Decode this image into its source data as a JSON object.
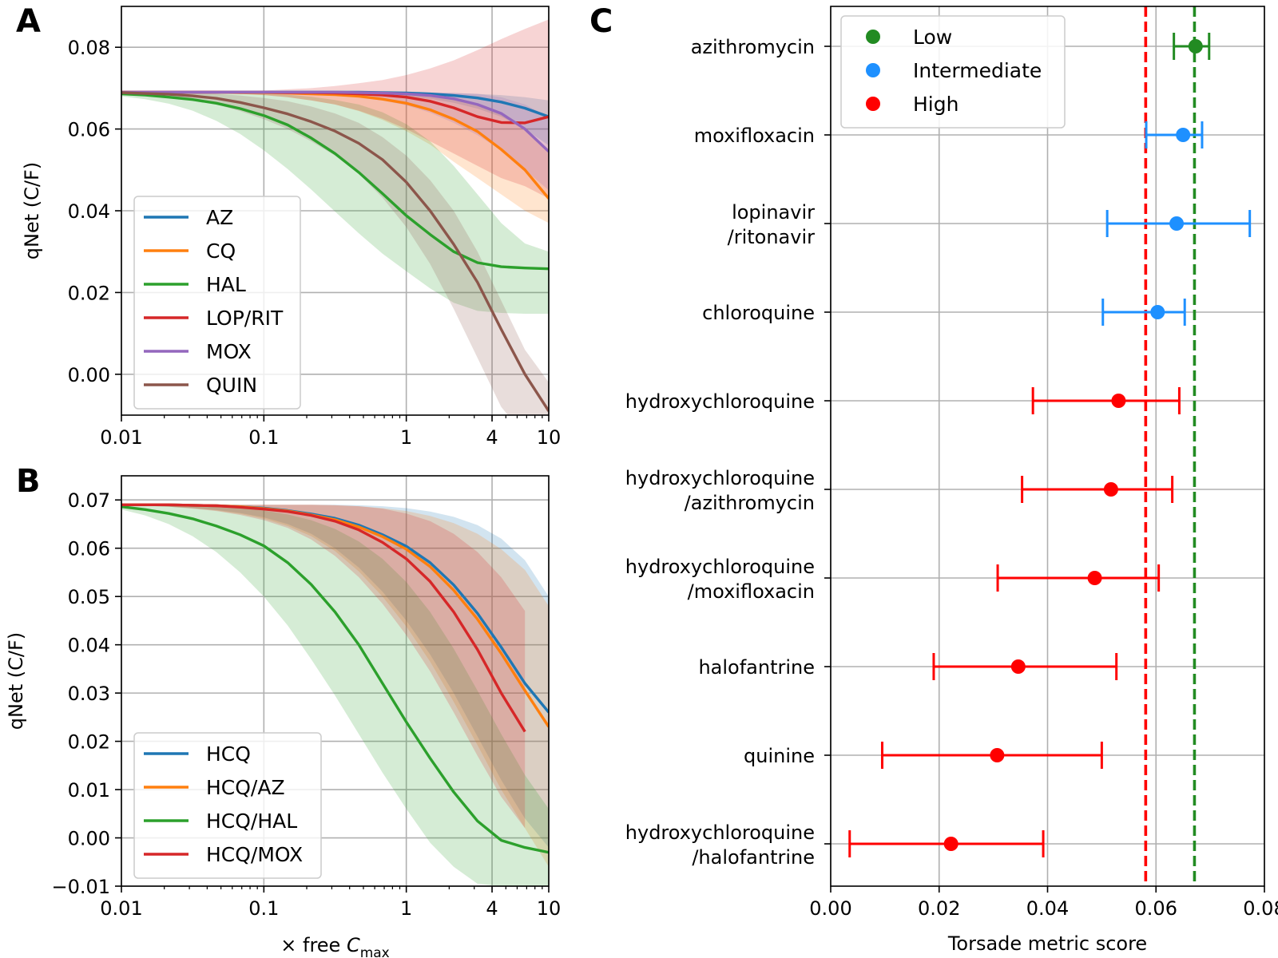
{
  "chart_data": [
    {
      "panel": "A",
      "type": "line",
      "xscale": "log",
      "xlim": [
        0.01,
        10
      ],
      "ylim": [
        -0.01,
        0.09
      ],
      "xticks": [
        0.01,
        0.1,
        1,
        4,
        10
      ],
      "xtick_labels": [
        "0.01",
        "0.1",
        "1",
        "4",
        "10"
      ],
      "yticks": [
        0.0,
        0.02,
        0.04,
        0.06,
        0.08
      ],
      "ytick_labels": [
        "0.00",
        "0.02",
        "0.04",
        "0.06",
        "0.08"
      ],
      "ylabel": "qNet (C/F)",
      "grid": true,
      "legend_position": "lower-left",
      "x": [
        0.01,
        0.0147,
        0.0215,
        0.0316,
        0.0464,
        0.0681,
        0.1,
        0.147,
        0.215,
        0.316,
        0.464,
        0.681,
        1,
        1.47,
        2.15,
        3.16,
        4.64,
        6.81,
        10
      ],
      "series": [
        {
          "name": "AZ",
          "color": "#1f77b4",
          "values": [
            0.069,
            0.069,
            0.069,
            0.069,
            0.069,
            0.069,
            0.069,
            0.069,
            0.069,
            0.069,
            0.069,
            0.0689,
            0.0688,
            0.0686,
            0.0682,
            0.0676,
            0.0666,
            0.0651,
            0.063
          ],
          "band_lower": [
            0.069,
            0.069,
            0.069,
            0.069,
            0.069,
            0.069,
            0.069,
            0.0689,
            0.0689,
            0.0688,
            0.0686,
            0.0684,
            0.068,
            0.0674,
            0.0664,
            0.065,
            0.063,
            0.06,
            0.056
          ],
          "band_upper": [
            0.069,
            0.069,
            0.069,
            0.069,
            0.069,
            0.069,
            0.069,
            0.069,
            0.069,
            0.069,
            0.069,
            0.069,
            0.069,
            0.0689,
            0.0688,
            0.0686,
            0.0683,
            0.0678,
            0.067
          ]
        },
        {
          "name": "CQ",
          "color": "#ff7f0e",
          "values": [
            0.069,
            0.069,
            0.069,
            0.069,
            0.069,
            0.0689,
            0.0689,
            0.0688,
            0.0686,
            0.0684,
            0.068,
            0.0673,
            0.0663,
            0.0647,
            0.0624,
            0.0594,
            0.055,
            0.05,
            0.043
          ],
          "band_lower": [
            0.069,
            0.069,
            0.069,
            0.0689,
            0.0688,
            0.0686,
            0.0683,
            0.0678,
            0.067,
            0.066,
            0.0644,
            0.0622,
            0.0595,
            0.0562,
            0.052,
            0.048,
            0.044,
            0.04,
            0.037
          ],
          "band_upper": [
            0.069,
            0.069,
            0.069,
            0.069,
            0.069,
            0.069,
            0.069,
            0.069,
            0.069,
            0.069,
            0.0689,
            0.0688,
            0.0686,
            0.0682,
            0.0675,
            0.0662,
            0.064,
            0.06,
            0.054
          ]
        },
        {
          "name": "HAL",
          "color": "#2ca02c",
          "values": [
            0.0686,
            0.0683,
            0.0678,
            0.0672,
            0.0663,
            0.065,
            0.0633,
            0.061,
            0.0578,
            0.054,
            0.0494,
            0.0442,
            0.0388,
            0.0342,
            0.03,
            0.0273,
            0.0263,
            0.026,
            0.0258
          ],
          "band_lower": [
            0.068,
            0.0673,
            0.0662,
            0.0645,
            0.062,
            0.0588,
            0.0548,
            0.0502,
            0.0452,
            0.0398,
            0.0345,
            0.0295,
            0.0252,
            0.021,
            0.0175,
            0.0155,
            0.015,
            0.0148,
            0.0148
          ],
          "band_upper": [
            0.069,
            0.069,
            0.069,
            0.069,
            0.069,
            0.0689,
            0.0687,
            0.0684,
            0.0679,
            0.0671,
            0.066,
            0.0641,
            0.0612,
            0.057,
            0.051,
            0.044,
            0.037,
            0.032,
            0.03
          ]
        },
        {
          "name": "LOP/RIT",
          "color": "#d62728",
          "values": [
            0.069,
            0.069,
            0.069,
            0.069,
            0.069,
            0.069,
            0.069,
            0.0689,
            0.0689,
            0.0688,
            0.0686,
            0.0683,
            0.0678,
            0.0668,
            0.0652,
            0.063,
            0.0616,
            0.0615,
            0.063
          ],
          "band_lower": [
            0.069,
            0.069,
            0.069,
            0.0689,
            0.0688,
            0.0686,
            0.0683,
            0.0678,
            0.067,
            0.066,
            0.0645,
            0.0625,
            0.06,
            0.057,
            0.054,
            0.051,
            0.048,
            0.046,
            0.043
          ],
          "band_upper": [
            0.069,
            0.069,
            0.069,
            0.0691,
            0.0691,
            0.0692,
            0.0694,
            0.0697,
            0.07,
            0.0705,
            0.0712,
            0.072,
            0.0732,
            0.0748,
            0.0768,
            0.0793,
            0.082,
            0.0845,
            0.0868
          ]
        },
        {
          "name": "MOX",
          "color": "#9467bd",
          "values": [
            0.069,
            0.069,
            0.069,
            0.069,
            0.069,
            0.069,
            0.069,
            0.069,
            0.069,
            0.069,
            0.0689,
            0.0688,
            0.0686,
            0.0682,
            0.0674,
            0.066,
            0.0638,
            0.06,
            0.0545
          ],
          "band_lower": [
            0.069,
            0.069,
            0.069,
            0.069,
            0.069,
            0.0689,
            0.0689,
            0.0688,
            0.0686,
            0.0683,
            0.0678,
            0.067,
            0.0658,
            0.064,
            0.0615,
            0.0585,
            0.0548,
            0.05,
            0.045
          ],
          "band_upper": [
            0.069,
            0.069,
            0.069,
            0.069,
            0.069,
            0.069,
            0.069,
            0.069,
            0.069,
            0.069,
            0.069,
            0.069,
            0.069,
            0.0689,
            0.0688,
            0.0686,
            0.0678,
            0.066,
            0.063
          ]
        },
        {
          "name": "QUIN",
          "color": "#8c564b",
          "values": [
            0.0689,
            0.0687,
            0.0685,
            0.0681,
            0.0675,
            0.0665,
            0.0652,
            0.0637,
            0.0618,
            0.0595,
            0.0565,
            0.0525,
            0.047,
            0.04,
            0.0318,
            0.0225,
            0.011,
            0.0,
            -0.009
          ],
          "band_lower": [
            0.0688,
            0.0685,
            0.068,
            0.0672,
            0.066,
            0.0644,
            0.0624,
            0.06,
            0.057,
            0.0535,
            0.049,
            0.0432,
            0.036,
            0.027,
            0.016,
            0.004,
            -0.008,
            -0.015,
            -0.02
          ],
          "band_upper": [
            0.069,
            0.069,
            0.0689,
            0.0688,
            0.0686,
            0.0682,
            0.0676,
            0.0668,
            0.0655,
            0.0638,
            0.0615,
            0.058,
            0.0535,
            0.0475,
            0.04,
            0.03,
            0.018,
            0.006,
            -0.002
          ]
        }
      ]
    },
    {
      "panel": "B",
      "type": "line",
      "xscale": "log",
      "xlim": [
        0.01,
        10
      ],
      "ylim": [
        -0.01,
        0.075
      ],
      "xticks": [
        0.01,
        0.1,
        1,
        4,
        10
      ],
      "xtick_labels": [
        "0.01",
        "0.1",
        "1",
        "4",
        "10"
      ],
      "yticks": [
        -0.01,
        0.0,
        0.01,
        0.02,
        0.03,
        0.04,
        0.05,
        0.06,
        0.07
      ],
      "ytick_labels": [
        "−0.01",
        "0.00",
        "0.01",
        "0.02",
        "0.03",
        "0.04",
        "0.05",
        "0.06",
        "0.07"
      ],
      "ylabel": "qNet (C/F)",
      "xlabel_prefix": "× free ",
      "xlabel_symbol": "C",
      "xlabel_subscript": "max",
      "grid": true,
      "legend_position": "lower-left",
      "x": [
        0.01,
        0.0147,
        0.0215,
        0.0316,
        0.0464,
        0.0681,
        0.1,
        0.147,
        0.215,
        0.316,
        0.464,
        0.681,
        1,
        1.47,
        2.15,
        3.16,
        4.64,
        6.81,
        10
      ],
      "series": [
        {
          "name": "HCQ",
          "color": "#1f77b4",
          "values": [
            0.069,
            0.069,
            0.069,
            0.0689,
            0.0688,
            0.0686,
            0.0683,
            0.0678,
            0.0671,
            0.0662,
            0.0648,
            0.0628,
            0.0604,
            0.057,
            0.0524,
            0.0465,
            0.0395,
            0.032,
            0.026
          ],
          "band_lower": [
            0.0689,
            0.0688,
            0.0686,
            0.0683,
            0.0679,
            0.0673,
            0.0664,
            0.065,
            0.063,
            0.06,
            0.056,
            0.051,
            0.045,
            0.038,
            0.03,
            0.021,
            0.012,
            0.004,
            -0.002
          ],
          "band_upper": [
            0.069,
            0.069,
            0.069,
            0.069,
            0.069,
            0.069,
            0.069,
            0.069,
            0.069,
            0.069,
            0.0689,
            0.0687,
            0.0683,
            0.0676,
            0.0665,
            0.0648,
            0.062,
            0.0575,
            0.05
          ]
        },
        {
          "name": "HCQ/AZ",
          "color": "#ff7f0e",
          "values": [
            0.069,
            0.069,
            0.069,
            0.0689,
            0.0688,
            0.0686,
            0.0682,
            0.0677,
            0.0669,
            0.0659,
            0.0644,
            0.0624,
            0.0598,
            0.0562,
            0.0513,
            0.0453,
            0.0382,
            0.0305,
            0.023
          ],
          "band_lower": [
            0.0689,
            0.0688,
            0.0686,
            0.0683,
            0.0678,
            0.0671,
            0.0661,
            0.0646,
            0.0625,
            0.0594,
            0.0552,
            0.05,
            0.0438,
            0.0365,
            0.0282,
            0.0192,
            0.01,
            0.002,
            -0.006
          ],
          "band_upper": [
            0.069,
            0.069,
            0.069,
            0.069,
            0.069,
            0.069,
            0.069,
            0.069,
            0.069,
            0.0689,
            0.0687,
            0.0683,
            0.0677,
            0.0667,
            0.0652,
            0.063,
            0.0598,
            0.0555,
            0.048
          ]
        },
        {
          "name": "HCQ/HAL",
          "color": "#2ca02c",
          "values": [
            0.0686,
            0.068,
            0.0672,
            0.0661,
            0.0646,
            0.0628,
            0.0605,
            0.057,
            0.0525,
            0.0468,
            0.04,
            0.032,
            0.024,
            0.0165,
            0.0095,
            0.0035,
            -0.0005,
            -0.002,
            -0.003
          ],
          "band_lower": [
            0.068,
            0.0668,
            0.065,
            0.0625,
            0.0592,
            0.055,
            0.05,
            0.044,
            0.037,
            0.0295,
            0.0215,
            0.0135,
            0.006,
            -0.001,
            -0.006,
            -0.0095,
            -0.01,
            -0.01,
            -0.01
          ],
          "band_upper": [
            0.069,
            0.069,
            0.0689,
            0.0688,
            0.0686,
            0.0683,
            0.0678,
            0.067,
            0.0658,
            0.064,
            0.0614,
            0.0578,
            0.053,
            0.0468,
            0.0392,
            0.0305,
            0.0215,
            0.013,
            0.006
          ]
        },
        {
          "name": "HCQ/MOX",
          "color": "#d62728",
          "values": [
            0.069,
            0.069,
            0.069,
            0.0689,
            0.0688,
            0.0685,
            0.0681,
            0.0676,
            0.0668,
            0.0656,
            0.0638,
            0.0612,
            0.0578,
            0.0531,
            0.0468,
            0.039,
            0.03,
            0.022,
            null
          ],
          "band_lower": [
            0.0689,
            0.0688,
            0.0686,
            0.0682,
            0.0677,
            0.0669,
            0.0658,
            0.0642,
            0.0618,
            0.0584,
            0.054,
            0.0485,
            0.042,
            0.0345,
            0.026,
            0.017,
            0.0085,
            0.002,
            null
          ],
          "band_upper": [
            0.069,
            0.069,
            0.069,
            0.069,
            0.069,
            0.069,
            0.069,
            0.069,
            0.069,
            0.0689,
            0.0687,
            0.0682,
            0.0672,
            0.0656,
            0.063,
            0.0592,
            0.054,
            0.047,
            null
          ]
        }
      ]
    },
    {
      "panel": "C",
      "type": "scatter",
      "xlabel": "Torsade metric score",
      "xlim": [
        0.0,
        0.08
      ],
      "xticks": [
        0.0,
        0.02,
        0.04,
        0.06,
        0.08
      ],
      "xtick_labels": [
        "0.00",
        "0.02",
        "0.04",
        "0.06",
        "0.08"
      ],
      "grid": true,
      "legend_position": "upper-left",
      "categories_top_to_bottom": [
        [
          "azithromycin"
        ],
        [
          "moxifloxacin"
        ],
        [
          "lopinavir",
          "/ritonavir"
        ],
        [
          "chloroquine"
        ],
        [
          "hydroxychloroquine"
        ],
        [
          "hydroxychloroquine",
          "/azithromycin"
        ],
        [
          "hydroxychloroquine",
          "/moxifloxacin"
        ],
        [
          "halofantrine"
        ],
        [
          "quinine"
        ],
        [
          "hydroxychloroquine",
          "/halofantrine"
        ]
      ],
      "risk_levels": [
        {
          "name": "Low",
          "color": "#228b22"
        },
        {
          "name": "Intermediate",
          "color": "#1e90ff"
        },
        {
          "name": "High",
          "color": "#ff0000"
        }
      ],
      "points": [
        {
          "value": 0.0673,
          "lower": 0.0633,
          "upper": 0.0698,
          "risk": "Low"
        },
        {
          "value": 0.065,
          "lower": 0.0582,
          "upper": 0.0685,
          "risk": "Intermediate"
        },
        {
          "value": 0.0638,
          "lower": 0.051,
          "upper": 0.0773,
          "risk": "Intermediate"
        },
        {
          "value": 0.0603,
          "lower": 0.0502,
          "upper": 0.0653,
          "risk": "Intermediate"
        },
        {
          "value": 0.0531,
          "lower": 0.0373,
          "upper": 0.0643,
          "risk": "High"
        },
        {
          "value": 0.0517,
          "lower": 0.0353,
          "upper": 0.063,
          "risk": "High"
        },
        {
          "value": 0.0487,
          "lower": 0.0308,
          "upper": 0.0605,
          "risk": "High"
        },
        {
          "value": 0.0346,
          "lower": 0.019,
          "upper": 0.0527,
          "risk": "High"
        },
        {
          "value": 0.0307,
          "lower": 0.0095,
          "upper": 0.05,
          "risk": "High"
        },
        {
          "value": 0.0222,
          "lower": 0.0035,
          "upper": 0.0392,
          "risk": "High"
        }
      ],
      "threshold_lines": [
        {
          "value": 0.0581,
          "color": "#ff0000",
          "style": "dashed"
        },
        {
          "value": 0.0671,
          "color": "#228b22",
          "style": "dashed"
        }
      ]
    }
  ]
}
